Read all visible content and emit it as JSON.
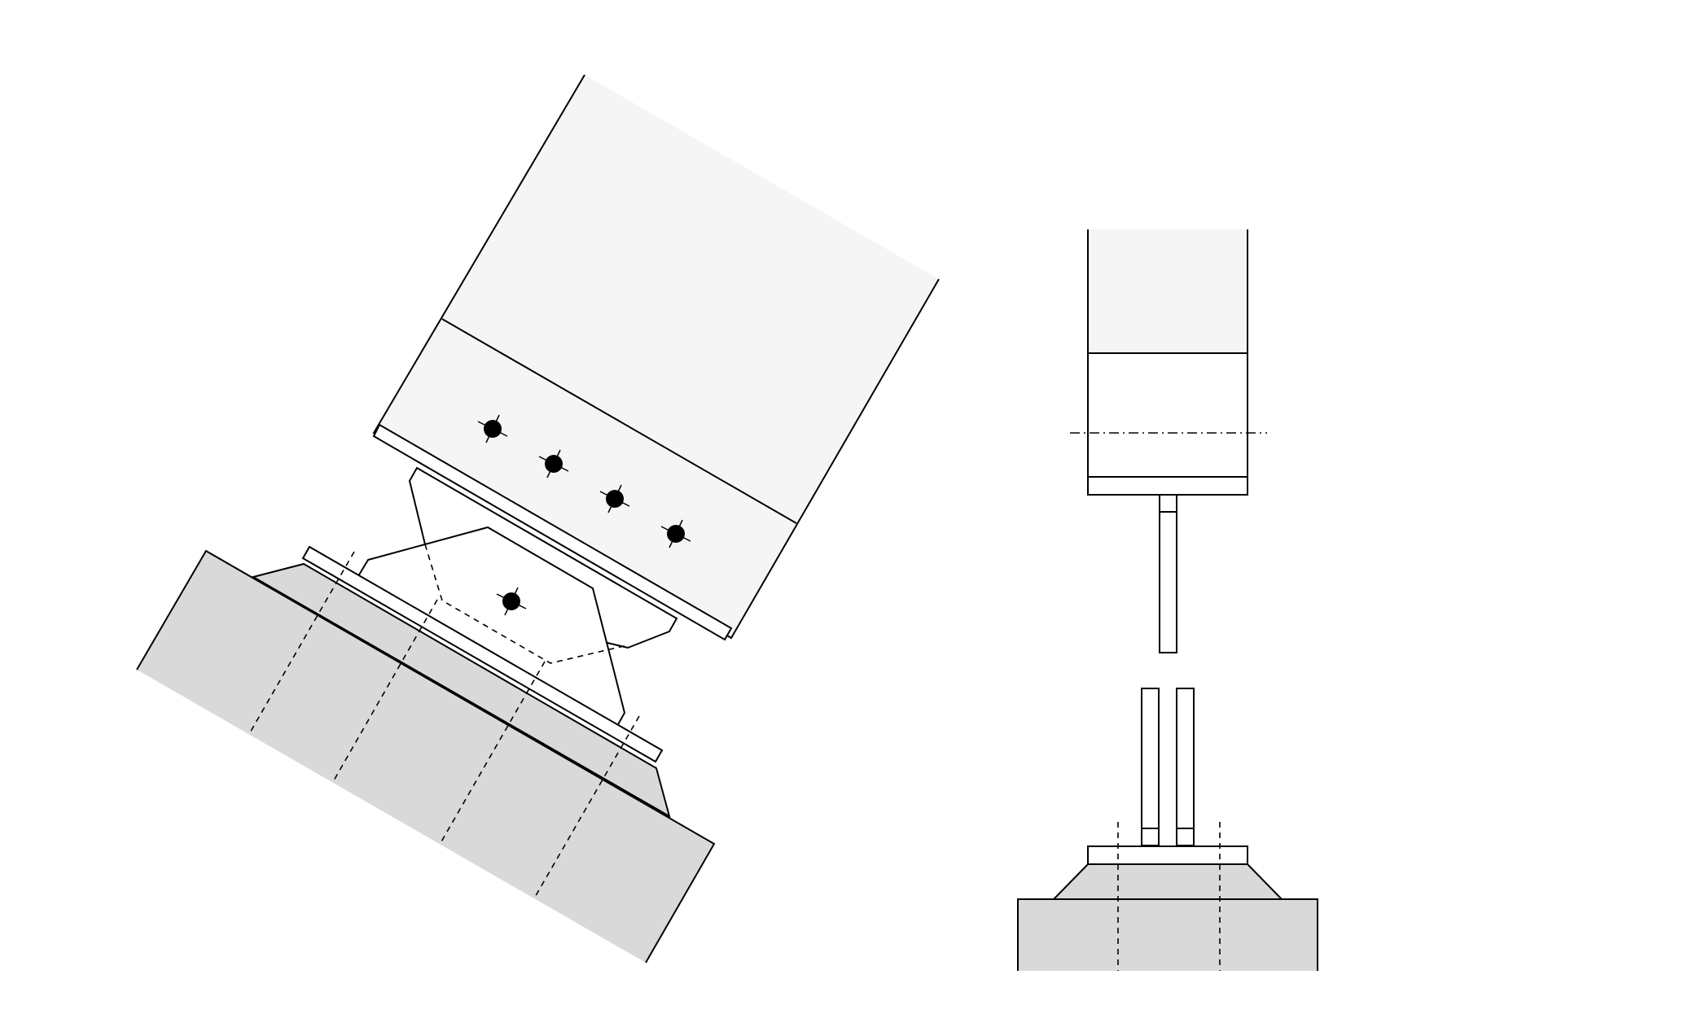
{
  "drawing": {
    "description_hidden": "",
    "colors": {
      "line": "#000000",
      "upper_member_fill": "#f5f5f5",
      "base_fill": "#d9d9d9",
      "plate_fill": "#ffffff",
      "bolt_fill": "#000000"
    },
    "views": [
      {
        "id": "inclined-connection-view",
        "bolt_count": 5
      },
      {
        "id": "side-section-view",
        "bolt_count": 0
      }
    ]
  }
}
